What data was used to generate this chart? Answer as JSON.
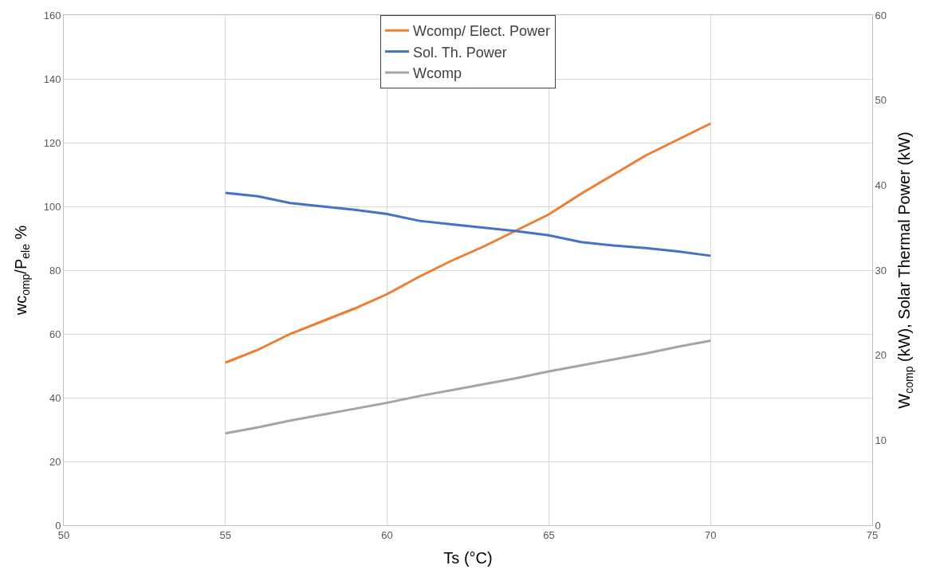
{
  "chart_data": {
    "type": "line",
    "xlabel": "Ts (°C)",
    "ylabel": "wc$_{omp}$/P$_{ele}$ %",
    "y2label": "W$_{comp}$ (kW), Solar Thermal Power (kW)",
    "x": [
      55,
      56,
      57,
      58,
      59,
      60,
      61,
      62,
      63,
      64,
      65,
      66,
      67,
      68,
      69,
      70
    ],
    "series": [
      {
        "name": "Wcomp/ Elect. Power",
        "color": "#ed7d31",
        "values": [
          51,
          55,
          60,
          64,
          68,
          72.5,
          78,
          83,
          87.5,
          92.5,
          97.5,
          104,
          110,
          116,
          121,
          126
        ]
      },
      {
        "name": "Sol. Th. Power",
        "color": "#4472c4",
        "axis": "y2",
        "values": [
          39.1,
          38.7,
          37.9,
          37.5,
          37.1,
          36.6,
          35.8,
          35.4,
          35.0,
          34.6,
          34.1,
          33.3,
          32.9,
          32.6,
          32.2,
          31.7
        ]
      },
      {
        "name": "Wcomp",
        "color": "#a5a5a5",
        "axis": "y2",
        "values": [
          10.8,
          11.5,
          12.3,
          13.0,
          13.7,
          14.4,
          15.2,
          15.9,
          16.6,
          17.3,
          18.1,
          18.8,
          19.5,
          20.2,
          21.0,
          21.7
        ]
      }
    ],
    "xlim": [
      50,
      75
    ],
    "xticks": [
      50,
      55,
      60,
      65,
      70,
      75
    ],
    "ylim": [
      0,
      160
    ],
    "yticks": [
      0,
      20,
      40,
      60,
      80,
      100,
      120,
      140,
      160
    ],
    "y2lim": [
      0,
      60
    ],
    "y2ticks": [
      0,
      10,
      20,
      30,
      40,
      50,
      60
    ],
    "grid": true,
    "legend": "top",
    "marker": "none",
    "line_style": "solid"
  }
}
